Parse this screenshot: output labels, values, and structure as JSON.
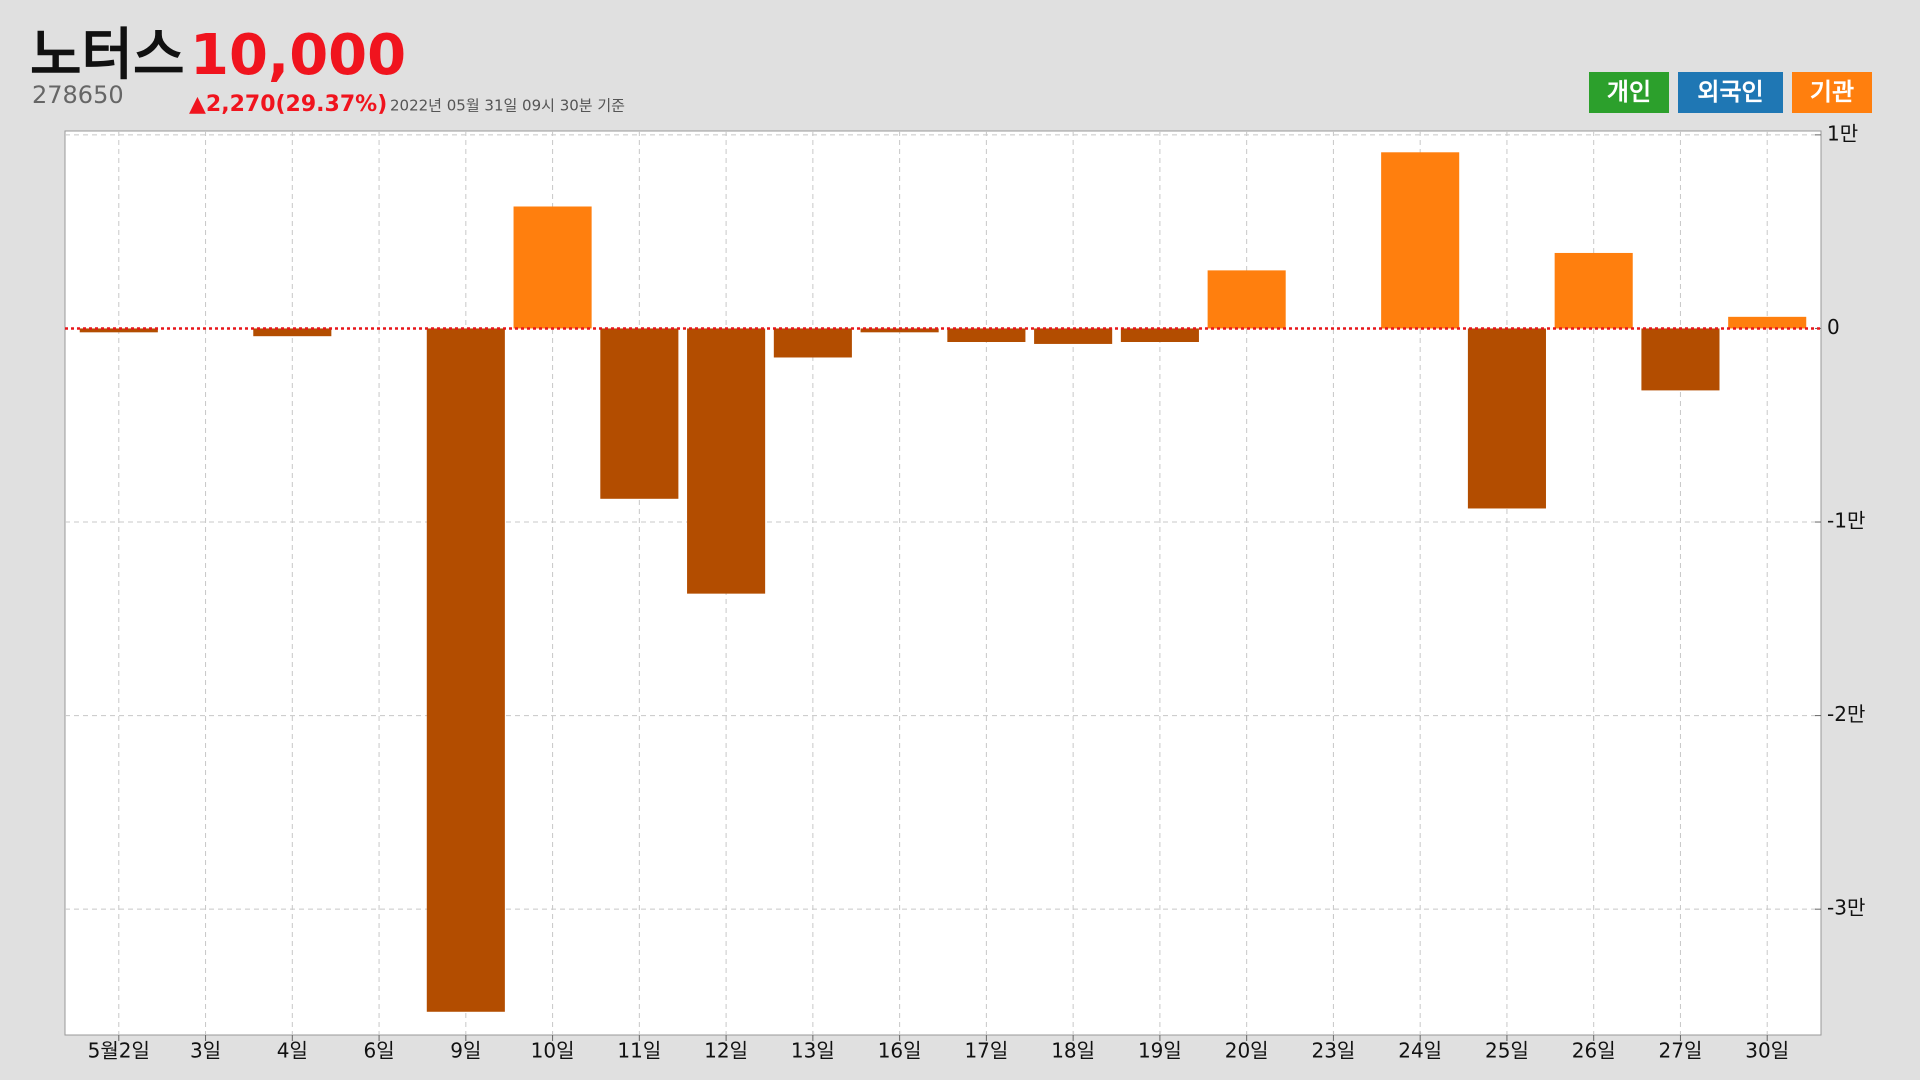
{
  "chart_data": {
    "type": "bar",
    "title": "노터스",
    "price": "10,000",
    "code": "278650",
    "change": "▲2,270(29.37%)",
    "timestamp": "2022년 05월 31일 09시 30분 기준",
    "toggles": [
      {
        "name": "개인",
        "color": "#2ca02c"
      },
      {
        "name": "외국인",
        "color": "#1f77b4"
      }
    ],
    "categories": [
      "5월2일",
      "3일",
      "4일",
      "6일",
      "9일",
      "10일",
      "11일",
      "12일",
      "13일",
      "16일",
      "17일",
      "18일",
      "19일",
      "20일",
      "23일",
      "24일",
      "25일",
      "26일",
      "27일",
      "30일"
    ],
    "series": [
      {
        "name": "기관",
        "color": "#ff7f0e",
        "negative_color": "#b34d00",
        "values": [
          -200,
          0,
          -400,
          0,
          -35300,
          6300,
          -8800,
          -13700,
          -1500,
          -200,
          -700,
          -800,
          -700,
          3000,
          0,
          9100,
          -9300,
          3900,
          -3200,
          600
        ]
      }
    ],
    "ylim": [
      -36500,
      10200
    ],
    "yticks": [
      {
        "value": 10000,
        "label": "1만"
      },
      0,
      {
        "value": -10000,
        "label": "-1만"
      },
      {
        "value": -20000,
        "label": "-2만"
      },
      {
        "value": -30000,
        "label": "-3만"
      }
    ],
    "grid": true,
    "zero_line_color": "#e8161b"
  }
}
